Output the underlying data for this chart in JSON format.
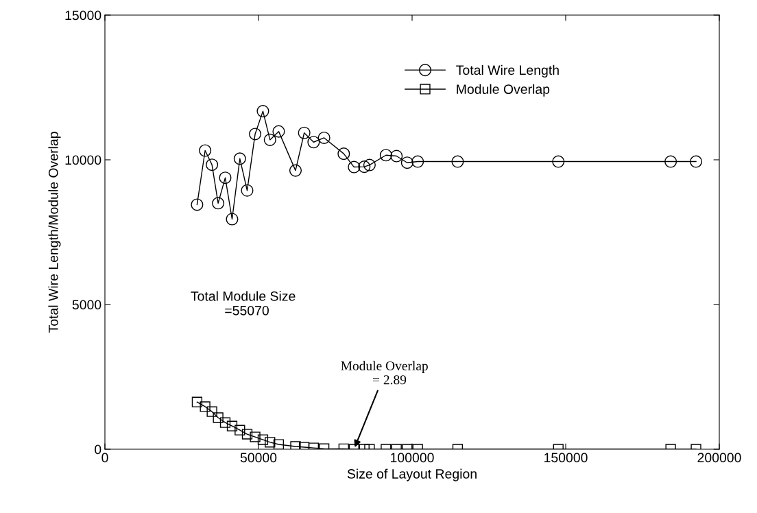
{
  "chart_data": {
    "type": "line",
    "xlabel": "Size of Layout Region",
    "ylabel": "Total Wire Length/Module Overlap",
    "x": [
      30000,
      32620,
      34850,
      36860,
      39170,
      41400,
      43930,
      46310,
      48900,
      51440,
      53740,
      56570,
      62050,
      64880,
      67940,
      71350,
      77750,
      81100,
      84440,
      86140,
      91490,
      94920,
      98400,
      101830,
      114830,
      147600,
      184180,
      192420
    ],
    "series": [
      {
        "name": "Total Wire Length",
        "color": "#000000",
        "marker": "circle",
        "values": [
          8450,
          10320,
          9830,
          8500,
          9380,
          7950,
          10040,
          8940,
          10890,
          11680,
          10690,
          10980,
          9630,
          10930,
          10610,
          10760,
          10210,
          9750,
          9760,
          9820,
          10160,
          10130,
          9900,
          9940,
          9940,
          9940,
          9940,
          9940
        ]
      },
      {
        "name": "Module Overlap",
        "color": "#000000",
        "marker": "square",
        "values": [
          1630,
          1470,
          1300,
          1090,
          920,
          800,
          660,
          520,
          425,
          330,
          240,
          165,
          95,
          70,
          45,
          20,
          15,
          2.89,
          0,
          0,
          0,
          0,
          0,
          0,
          0,
          0,
          0,
          0
        ]
      }
    ],
    "xlim": [
      0,
      200000
    ],
    "xticks": [
      0,
      50000,
      100000,
      150000,
      200000
    ],
    "ylim": [
      0,
      15000
    ],
    "yticks": [
      0,
      5000,
      10000,
      15000
    ],
    "grid": false,
    "legend": "top right",
    "line_style": "solid",
    "annotations": [
      "Total Module Size\n  =55070",
      {
        "text": "Module Overlap\n   = 2.89",
        "x": 81100,
        "y": 2.89
      }
    ]
  }
}
